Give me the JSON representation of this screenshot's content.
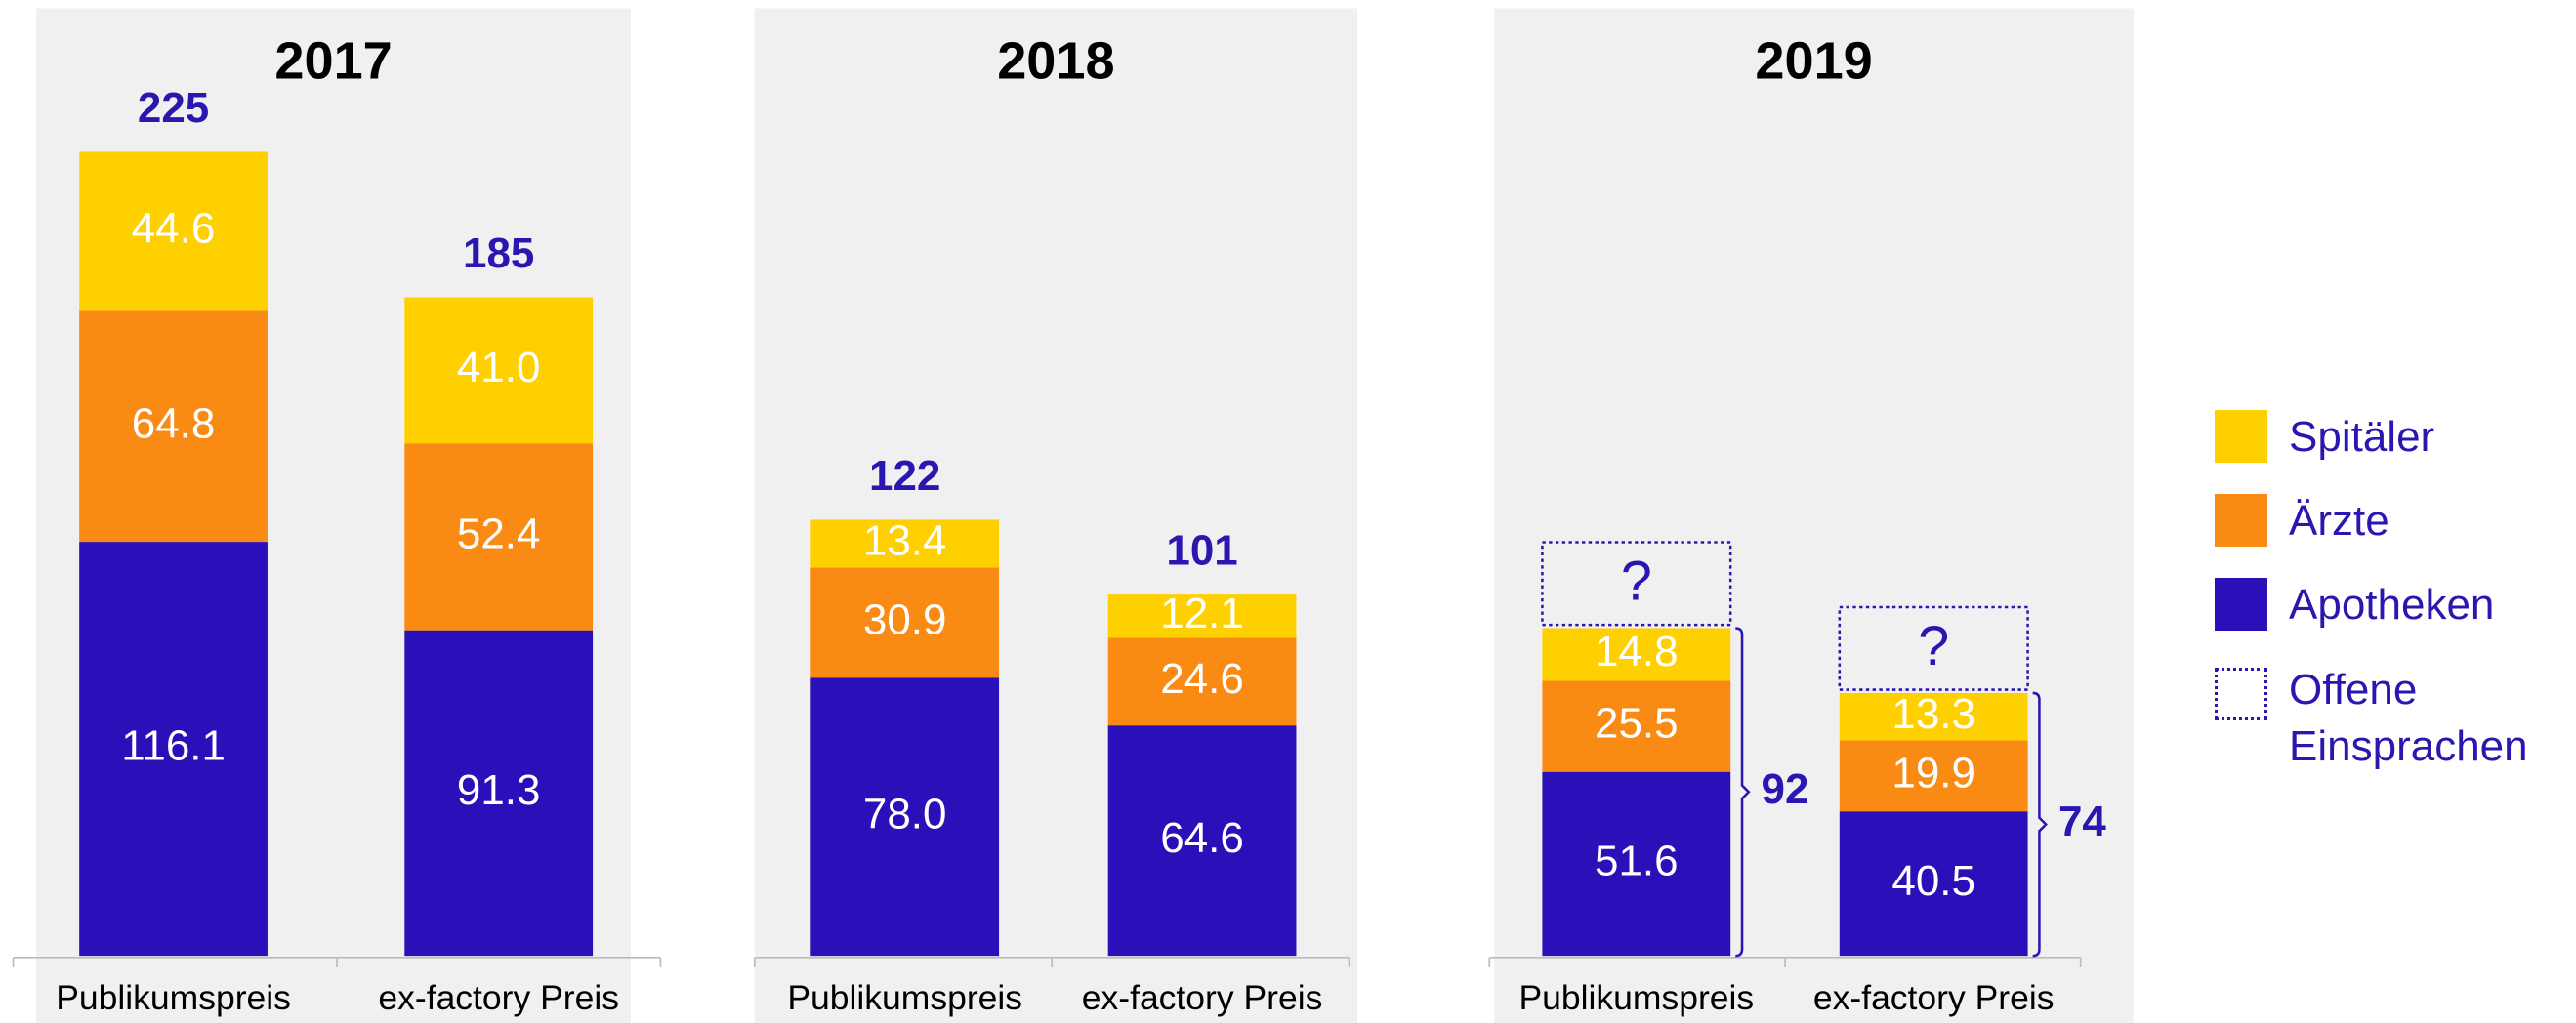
{
  "chart_data": [
    {
      "type": "stacked_bar",
      "title": "2017",
      "categories": [
        "Publikumspreis",
        "ex-factory Preis"
      ],
      "series": [
        {
          "name": "Apotheken",
          "color": "#2a10b8",
          "values": [
            116.1,
            91.3
          ],
          "value_labels": [
            "116.1",
            "91.3"
          ]
        },
        {
          "name": "Ärzte",
          "color": "#f98b14",
          "values": [
            64.8,
            52.4
          ],
          "value_labels": [
            "64.8",
            "52.4"
          ]
        },
        {
          "name": "Spitäler",
          "color": "#ffd000",
          "values": [
            44.6,
            41.0
          ],
          "value_labels": [
            "44.6",
            "41.0"
          ]
        }
      ],
      "totals": [
        225,
        185
      ]
    },
    {
      "type": "stacked_bar",
      "title": "2018",
      "categories": [
        "Publikumspreis",
        "ex-factory Preis"
      ],
      "series": [
        {
          "name": "Apotheken",
          "color": "#2a10b8",
          "values": [
            78.0,
            64.6
          ],
          "value_labels": [
            "78.0",
            "64.6"
          ]
        },
        {
          "name": "Ärzte",
          "color": "#f98b14",
          "values": [
            30.9,
            24.6
          ],
          "value_labels": [
            "30.9",
            "24.6"
          ]
        },
        {
          "name": "Spitäler",
          "color": "#ffd000",
          "values": [
            13.4,
            12.1
          ],
          "value_labels": [
            "13.4",
            "12.1"
          ]
        }
      ],
      "totals": [
        122,
        101
      ]
    },
    {
      "type": "stacked_bar_bracket",
      "title": "2019",
      "categories": [
        "Publikumspreis",
        "ex-factory Preis"
      ],
      "series": [
        {
          "name": "Apotheken",
          "color": "#2a10b8",
          "values": [
            51.6,
            40.5
          ],
          "value_labels": [
            "51.6",
            "40.5"
          ]
        },
        {
          "name": "Ärzte",
          "color": "#f98b14",
          "values": [
            25.5,
            19.9
          ],
          "value_labels": [
            "25.5",
            "19.9"
          ]
        },
        {
          "name": "Spitäler",
          "color": "#ffd000",
          "values": [
            14.8,
            13.3
          ],
          "value_labels": [
            "14.8",
            "13.3"
          ]
        }
      ],
      "totals": [
        92,
        74
      ],
      "open_label": "?"
    }
  ],
  "legend": {
    "open_objections": "Offene Einsprachen"
  }
}
